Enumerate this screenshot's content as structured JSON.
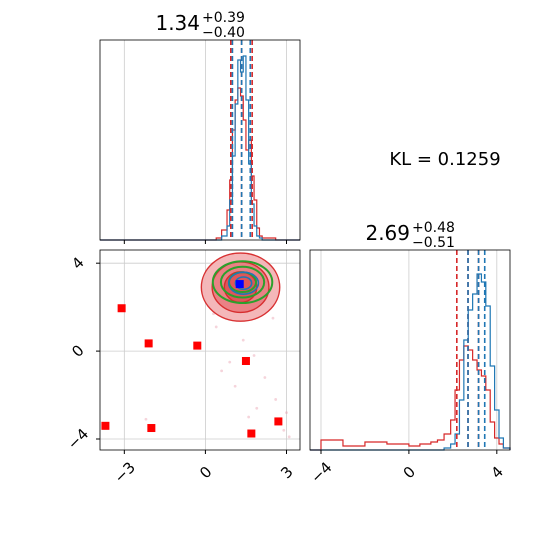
{
  "chart_data": {
    "type": "corner",
    "kl_text": "KL = 0.1259",
    "colors": {
      "red": "#d62728",
      "blue": "#1f77b4",
      "green": "#2ca02c",
      "marker_red": "#ff0000",
      "marker_blue": "#0000ff",
      "grid": "#cccccc"
    },
    "params": [
      {
        "title_value": "1.34",
        "title_plus": "+0.39",
        "title_minus": "−0.40",
        "range": [
          -3.9,
          3.5
        ],
        "ticks": [
          -3,
          0,
          3
        ],
        "tick_labels": [
          "−3",
          "0",
          "3"
        ],
        "quantiles_red": [
          0.94,
          1.34,
          1.73
        ],
        "quantiles_blue": [
          1.0,
          1.34,
          1.66
        ]
      },
      {
        "title_value": "2.69",
        "title_plus": "+0.48",
        "title_minus": "−0.51",
        "range": [
          -4.5,
          4.6
        ],
        "ticks": [
          -4,
          0,
          4
        ],
        "tick_labels": [
          "−4",
          "0",
          "4"
        ],
        "quantiles_red": [
          2.18,
          2.69,
          3.17
        ],
        "quantiles_blue": [
          2.69,
          3.17,
          3.45
        ]
      }
    ],
    "hist_x": [
      {
        "x": [
          -3.9,
          -3.0,
          -2.0,
          -1.0,
          0.0,
          0.4,
          0.6,
          0.8,
          0.9,
          1.0,
          1.1,
          1.2,
          1.3,
          1.4,
          1.5,
          1.6,
          1.7,
          1.8,
          1.9,
          2.0,
          2.1,
          2.3,
          2.6,
          3.0,
          3.5
        ],
        "red": [
          0,
          0,
          0,
          0,
          0,
          0.01,
          0.05,
          0.15,
          0.3,
          0.55,
          0.7,
          0.76,
          0.72,
          0.6,
          0.45,
          0.5,
          0.32,
          0.2,
          0.06,
          0.02,
          0.01,
          0.01,
          0,
          0,
          0
        ],
        "blue": [
          0,
          0,
          0,
          0,
          0,
          0,
          0.02,
          0.07,
          0.2,
          0.42,
          0.68,
          0.9,
          0.84,
          0.92,
          0.7,
          0.38,
          0.18,
          0.07,
          0.02,
          0.01,
          0,
          0,
          0,
          0,
          0
        ]
      },
      {
        "x": [
          -4.5,
          -4.0,
          -3.0,
          -2.0,
          -1.0,
          0.0,
          0.5,
          1.0,
          1.3,
          1.6,
          1.9,
          2.1,
          2.3,
          2.5,
          2.7,
          2.9,
          3.1,
          3.3,
          3.5,
          3.7,
          3.9,
          4.1,
          4.3,
          4.6
        ],
        "red": [
          0,
          0.05,
          0.02,
          0.04,
          0.03,
          0.02,
          0.03,
          0.04,
          0.05,
          0.08,
          0.15,
          0.3,
          0.45,
          0.52,
          0.5,
          0.45,
          0.4,
          0.37,
          0.3,
          0.14,
          0.06,
          0.03,
          0.01,
          0
        ],
        "blue": [
          0,
          0,
          0,
          0,
          0,
          0,
          0,
          0,
          0,
          0.01,
          0.03,
          0.08,
          0.25,
          0.55,
          0.7,
          0.78,
          0.88,
          0.84,
          0.72,
          0.42,
          0.2,
          0.06,
          0.01,
          0
        ]
      }
    ],
    "scatter_markers": [
      {
        "x": -3.7,
        "y": -3.4
      },
      {
        "x": -3.1,
        "y": 1.95
      },
      {
        "x": -2.1,
        "y": 0.35
      },
      {
        "x": -2.0,
        "y": -3.5
      },
      {
        "x": -0.3,
        "y": 0.25
      },
      {
        "x": 1.5,
        "y": -0.45
      },
      {
        "x": 1.7,
        "y": -3.75
      },
      {
        "x": 2.7,
        "y": -3.2
      }
    ],
    "truth_marker": {
      "x": 1.27,
      "y": 3.05
    },
    "contour_center": {
      "x": 1.3,
      "y": 3.0
    },
    "red_contours": [
      {
        "rx": 1.45,
        "ry": 1.55
      },
      {
        "rx": 1.05,
        "ry": 1.15
      },
      {
        "rx": 0.6,
        "ry": 0.7
      }
    ],
    "green_contours": [
      {
        "rx": 1.1,
        "ry": 0.95
      },
      {
        "rx": 0.8,
        "ry": 0.7
      },
      {
        "rx": 0.5,
        "ry": 0.45
      }
    ],
    "blue_contours": [
      {
        "rx": 0.55,
        "ry": 0.5
      },
      {
        "rx": 0.3,
        "ry": 0.28
      }
    ]
  }
}
